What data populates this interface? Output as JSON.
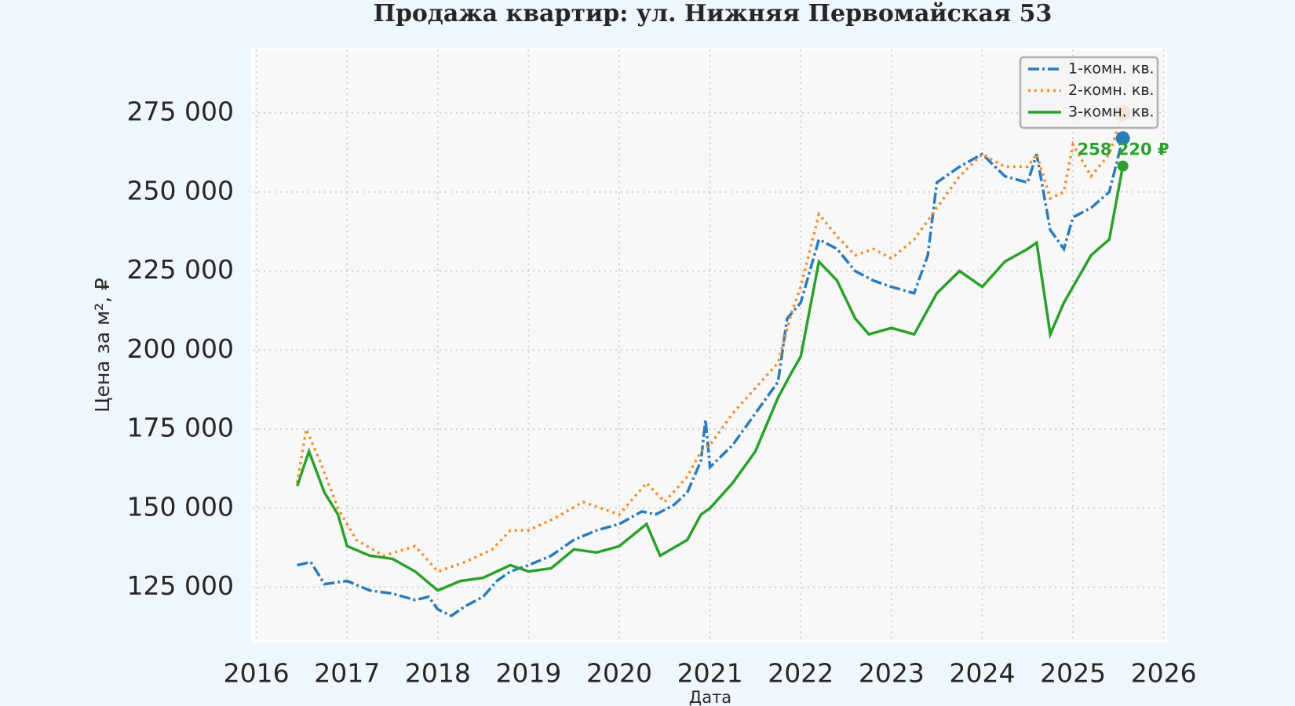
{
  "chart_data": {
    "type": "line",
    "title": "Продажа квартир: ул. Нижняя Первомайская 53",
    "xlabel": "Дата",
    "ylabel": "Цена за м², ₽",
    "xlim": [
      2015.96,
      2026.02
    ],
    "xticks": [
      2016,
      2017,
      2018,
      2019,
      2020,
      2021,
      2022,
      2023,
      2024,
      2025,
      2026
    ],
    "ylim": [
      107800,
      295100
    ],
    "yticks": [
      {
        "value": 125000,
        "label": "125 000"
      },
      {
        "value": 150000,
        "label": "150 000"
      },
      {
        "value": 175000,
        "label": "175 000"
      },
      {
        "value": 200000,
        "label": "200 000"
      },
      {
        "value": 225000,
        "label": "225 000"
      },
      {
        "value": 250000,
        "label": "250 000"
      },
      {
        "value": 275000,
        "label": "275 000"
      }
    ],
    "grid": true,
    "legend": "upper right",
    "series": [
      {
        "name": "1-комн. кв.",
        "color": "#2b7bba",
        "style": "dashdot",
        "x": [
          2016.45,
          2016.6,
          2016.75,
          2017.0,
          2017.25,
          2017.5,
          2017.75,
          2017.9,
          2018.0,
          2018.15,
          2018.3,
          2018.5,
          2018.65,
          2018.8,
          2019.0,
          2019.25,
          2019.5,
          2019.75,
          2020.0,
          2020.25,
          2020.4,
          2020.6,
          2020.75,
          2020.9,
          2020.95,
          2021.0,
          2021.25,
          2021.5,
          2021.75,
          2021.85,
          2022.0,
          2022.2,
          2022.4,
          2022.6,
          2022.8,
          2023.0,
          2023.25,
          2023.4,
          2023.5,
          2023.75,
          2024.0,
          2024.25,
          2024.5,
          2024.6,
          2024.75,
          2024.9,
          2025.0,
          2025.2,
          2025.4,
          2025.55
        ],
        "values": [
          132000,
          133000,
          126000,
          127000,
          124000,
          123000,
          121000,
          122000,
          118000,
          116000,
          119000,
          122000,
          127000,
          130000,
          132000,
          135000,
          140000,
          143000,
          145000,
          149000,
          148000,
          151000,
          155000,
          165000,
          178000,
          163000,
          170000,
          180000,
          190000,
          210000,
          215000,
          235000,
          232000,
          225000,
          222000,
          220000,
          218000,
          230000,
          253000,
          258000,
          262000,
          255000,
          253000,
          262000,
          238000,
          232000,
          242000,
          245000,
          250000,
          267000
        ]
      },
      {
        "name": "2-комн. кв.",
        "color": "#f28e2b",
        "style": "dotted",
        "x": [
          2016.45,
          2016.55,
          2016.7,
          2016.9,
          2017.1,
          2017.4,
          2017.75,
          2018.0,
          2018.3,
          2018.6,
          2018.8,
          2019.0,
          2019.3,
          2019.6,
          2019.8,
          2020.0,
          2020.3,
          2020.5,
          2020.75,
          2020.9,
          2021.0,
          2021.25,
          2021.5,
          2021.75,
          2021.9,
          2022.0,
          2022.2,
          2022.4,
          2022.6,
          2022.8,
          2023.0,
          2023.25,
          2023.5,
          2023.75,
          2024.0,
          2024.25,
          2024.5,
          2024.6,
          2024.75,
          2024.9,
          2025.0,
          2025.2,
          2025.4,
          2025.55
        ],
        "values": [
          158000,
          175000,
          165000,
          150000,
          140000,
          135000,
          138000,
          130000,
          133000,
          137000,
          143000,
          143000,
          147000,
          152000,
          150000,
          148000,
          158000,
          152000,
          160000,
          168000,
          170000,
          180000,
          188000,
          196000,
          212000,
          220000,
          243000,
          236000,
          230000,
          232000,
          229000,
          235000,
          245000,
          255000,
          262000,
          258000,
          258000,
          262000,
          248000,
          250000,
          265000,
          255000,
          262000,
          275000
        ]
      },
      {
        "name": "3-комн. кв.",
        "color": "#2ca02c",
        "style": "solid",
        "end_label": "258 220 ₽",
        "x": [
          2016.45,
          2016.58,
          2016.75,
          2016.9,
          2017.0,
          2017.25,
          2017.5,
          2017.75,
          2018.0,
          2018.25,
          2018.5,
          2018.8,
          2019.0,
          2019.25,
          2019.5,
          2019.75,
          2020.0,
          2020.3,
          2020.45,
          2020.75,
          2020.9,
          2021.0,
          2021.25,
          2021.5,
          2021.75,
          2021.9,
          2022.0,
          2022.2,
          2022.4,
          2022.6,
          2022.75,
          2023.0,
          2023.25,
          2023.5,
          2023.75,
          2024.0,
          2024.25,
          2024.5,
          2024.6,
          2024.75,
          2024.9,
          2025.0,
          2025.2,
          2025.4,
          2025.55
        ],
        "values": [
          157000,
          168000,
          155000,
          148000,
          138000,
          135000,
          134000,
          130000,
          124000,
          127000,
          128000,
          132000,
          130000,
          131000,
          137000,
          136000,
          138000,
          145000,
          135000,
          140000,
          148000,
          150000,
          158000,
          168000,
          185000,
          193000,
          198000,
          228000,
          222000,
          210000,
          205000,
          207000,
          205000,
          218000,
          225000,
          220000,
          228000,
          232000,
          234000,
          205000,
          215000,
          220000,
          230000,
          235000,
          258220
        ]
      }
    ]
  }
}
